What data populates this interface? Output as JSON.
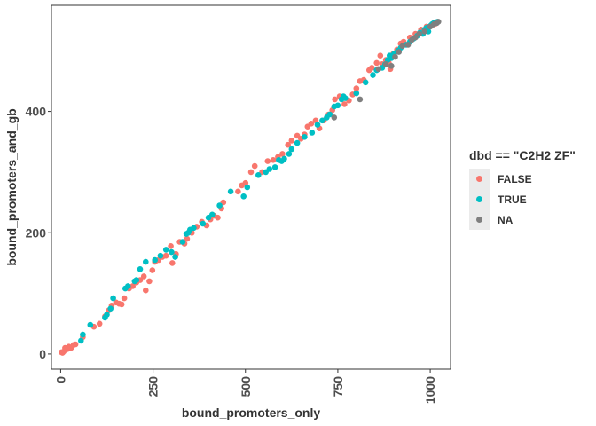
{
  "chart_data": {
    "type": "scatter",
    "xlabel": "bound_promoters_only",
    "ylabel": "bound_promoters_and_gb",
    "xlim": [
      -25,
      1055
    ],
    "ylim": [
      -25,
      575
    ],
    "x_ticks": [
      0,
      250,
      500,
      750,
      1000
    ],
    "y_ticks": [
      0,
      200,
      400
    ],
    "grid": false,
    "legend": {
      "title": "dbd == \"C2H2 ZF\"",
      "placement": "right",
      "entries": [
        "FALSE",
        "TRUE",
        "NA"
      ]
    },
    "colors": {
      "FALSE": "#F8766D",
      "TRUE": "#00BFC4",
      "NA": "#7F7F7F"
    },
    "series": [
      {
        "name": "FALSE",
        "points": [
          [
            2,
            3
          ],
          [
            5,
            2
          ],
          [
            8,
            4
          ],
          [
            12,
            10
          ],
          [
            18,
            8
          ],
          [
            22,
            12
          ],
          [
            28,
            10
          ],
          [
            35,
            15
          ],
          [
            40,
            16
          ],
          [
            60,
            28
          ],
          [
            90,
            45
          ],
          [
            105,
            50
          ],
          [
            120,
            62
          ],
          [
            130,
            72
          ],
          [
            138,
            80
          ],
          [
            150,
            85
          ],
          [
            158,
            83
          ],
          [
            165,
            82
          ],
          [
            172,
            92
          ],
          [
            185,
            108
          ],
          [
            195,
            112
          ],
          [
            205,
            118
          ],
          [
            215,
            122
          ],
          [
            225,
            128
          ],
          [
            230,
            105
          ],
          [
            240,
            120
          ],
          [
            248,
            138
          ],
          [
            255,
            152
          ],
          [
            265,
            155
          ],
          [
            275,
            160
          ],
          [
            285,
            162
          ],
          [
            298,
            178
          ],
          [
            302,
            150
          ],
          [
            312,
            165
          ],
          [
            322,
            185
          ],
          [
            335,
            182
          ],
          [
            342,
            190
          ],
          [
            355,
            200
          ],
          [
            368,
            210
          ],
          [
            382,
            218
          ],
          [
            395,
            212
          ],
          [
            405,
            222
          ],
          [
            415,
            228
          ],
          [
            425,
            225
          ],
          [
            435,
            240
          ],
          [
            440,
            250
          ],
          [
            480,
            268
          ],
          [
            490,
            278
          ],
          [
            500,
            282
          ],
          [
            515,
            300
          ],
          [
            525,
            310
          ],
          [
            545,
            300
          ],
          [
            560,
            318
          ],
          [
            575,
            320
          ],
          [
            588,
            325
          ],
          [
            600,
            330
          ],
          [
            615,
            345
          ],
          [
            625,
            352
          ],
          [
            640,
            360
          ],
          [
            650,
            355
          ],
          [
            660,
            362
          ],
          [
            668,
            375
          ],
          [
            678,
            380
          ],
          [
            690,
            385
          ],
          [
            700,
            372
          ],
          [
            712,
            385
          ],
          [
            725,
            395
          ],
          [
            735,
            402
          ],
          [
            742,
            420
          ],
          [
            755,
            425
          ],
          [
            768,
            412
          ],
          [
            780,
            418
          ],
          [
            790,
            428
          ],
          [
            800,
            438
          ],
          [
            810,
            450
          ],
          [
            820,
            452
          ],
          [
            835,
            468
          ],
          [
            842,
            472
          ],
          [
            855,
            480
          ],
          [
            865,
            492
          ],
          [
            870,
            478
          ],
          [
            880,
            485
          ],
          [
            888,
            480
          ],
          [
            892,
            470
          ],
          [
            900,
            495
          ],
          [
            910,
            502
          ],
          [
            920,
            512
          ],
          [
            928,
            515
          ],
          [
            945,
            522
          ],
          [
            960,
            528
          ],
          [
            975,
            535
          ],
          [
            990,
            540
          ],
          [
            1005,
            542
          ],
          [
            1015,
            545
          ]
        ]
      },
      {
        "name": "TRUE",
        "points": [
          [
            55,
            22
          ],
          [
            60,
            32
          ],
          [
            80,
            48
          ],
          [
            120,
            60
          ],
          [
            125,
            65
          ],
          [
            135,
            75
          ],
          [
            142,
            92
          ],
          [
            175,
            108
          ],
          [
            182,
            112
          ],
          [
            200,
            120
          ],
          [
            205,
            122
          ],
          [
            215,
            140
          ],
          [
            230,
            152
          ],
          [
            255,
            155
          ],
          [
            270,
            162
          ],
          [
            285,
            172
          ],
          [
            300,
            168
          ],
          [
            310,
            160
          ],
          [
            330,
            185
          ],
          [
            340,
            198
          ],
          [
            345,
            200
          ],
          [
            350,
            205
          ],
          [
            360,
            208
          ],
          [
            385,
            215
          ],
          [
            400,
            225
          ],
          [
            410,
            230
          ],
          [
            430,
            245
          ],
          [
            460,
            268
          ],
          [
            495,
            260
          ],
          [
            505,
            275
          ],
          [
            535,
            295
          ],
          [
            555,
            300
          ],
          [
            565,
            305
          ],
          [
            580,
            308
          ],
          [
            590,
            320
          ],
          [
            598,
            318
          ],
          [
            605,
            322
          ],
          [
            618,
            330
          ],
          [
            625,
            338
          ],
          [
            640,
            348
          ],
          [
            660,
            358
          ],
          [
            680,
            365
          ],
          [
            695,
            378
          ],
          [
            708,
            385
          ],
          [
            720,
            390
          ],
          [
            728,
            395
          ],
          [
            740,
            408
          ],
          [
            750,
            410
          ],
          [
            760,
            420
          ],
          [
            765,
            425
          ],
          [
            770,
            422
          ],
          [
            800,
            430
          ],
          [
            825,
            448
          ],
          [
            845,
            460
          ],
          [
            855,
            468
          ],
          [
            870,
            472
          ],
          [
            878,
            478
          ],
          [
            885,
            485
          ],
          [
            890,
            492
          ],
          [
            895,
            488
          ],
          [
            902,
            495
          ],
          [
            912,
            500
          ],
          [
            920,
            505
          ],
          [
            935,
            510
          ],
          [
            945,
            515
          ],
          [
            955,
            520
          ],
          [
            965,
            525
          ],
          [
            972,
            530
          ],
          [
            980,
            528
          ],
          [
            985,
            535
          ],
          [
            990,
            538
          ],
          [
            995,
            532
          ],
          [
            998,
            540
          ],
          [
            1002,
            542
          ],
          [
            1005,
            544
          ],
          [
            1008,
            545
          ],
          [
            1010,
            546
          ],
          [
            1015,
            547
          ],
          [
            1020,
            548
          ]
        ]
      },
      {
        "name": "NA",
        "points": [
          [
            740,
            390
          ],
          [
            810,
            420
          ],
          [
            860,
            470
          ],
          [
            880,
            478
          ],
          [
            895,
            475
          ],
          [
            905,
            490
          ],
          [
            915,
            498
          ],
          [
            925,
            508
          ],
          [
            940,
            510
          ],
          [
            950,
            518
          ],
          [
            960,
            522
          ],
          [
            970,
            528
          ],
          [
            985,
            532
          ],
          [
            1000,
            540
          ],
          [
            1010,
            544
          ],
          [
            1018,
            546
          ],
          [
            1022,
            548
          ]
        ]
      }
    ]
  }
}
